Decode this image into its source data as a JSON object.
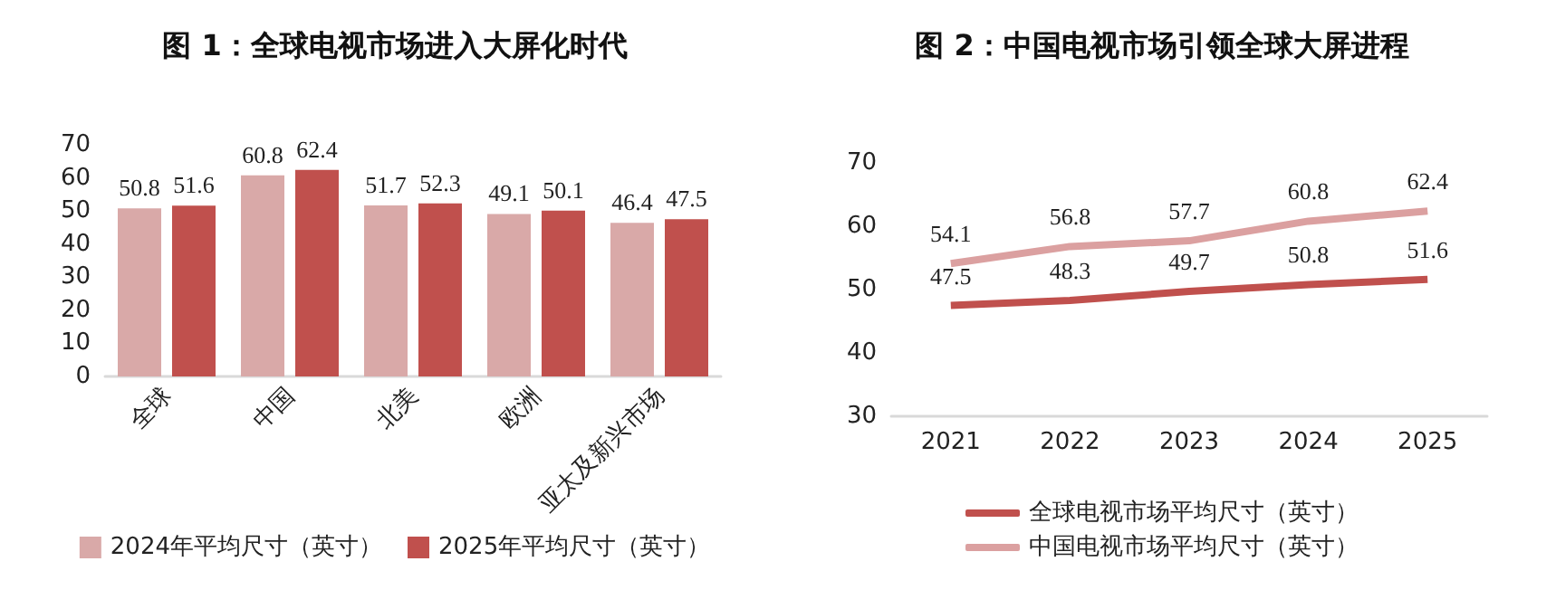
{
  "chart_data": [
    {
      "type": "bar",
      "title": "图 1：全球电视市场进入大屏化时代",
      "categories": [
        "全球",
        "中国",
        "北美",
        "欧洲",
        "亚太及新兴市场"
      ],
      "series": [
        {
          "name": "2024年平均尺寸（英寸）",
          "color": "#d9a9a8",
          "values": [
            50.8,
            60.8,
            51.7,
            49.1,
            46.4
          ]
        },
        {
          "name": "2025年平均尺寸（英寸）",
          "color": "#c0504d",
          "values": [
            51.6,
            62.4,
            52.3,
            50.1,
            47.5
          ]
        }
      ],
      "ylim": [
        0,
        70
      ],
      "yticks": [
        0,
        10,
        20,
        30,
        40,
        50,
        60,
        70
      ],
      "grid": false,
      "legend": "bottom",
      "data_labels": true
    },
    {
      "type": "line",
      "title": "图 2：中国电视市场引领全球大屏进程",
      "categories": [
        "2021",
        "2022",
        "2023",
        "2024",
        "2025"
      ],
      "series": [
        {
          "name": "全球电视市场平均尺寸（英寸）",
          "color": "#c0504d",
          "values": [
            47.5,
            48.3,
            49.7,
            50.8,
            51.6
          ]
        },
        {
          "name": "中国电视市场平均尺寸（英寸）",
          "color": "#dba0a0",
          "values": [
            54.1,
            56.8,
            57.7,
            60.8,
            62.4
          ]
        }
      ],
      "ylim": [
        30,
        70
      ],
      "yticks": [
        30,
        40,
        50,
        60,
        70
      ],
      "grid": false,
      "legend": "bottom",
      "marker": "none",
      "data_labels": true
    }
  ]
}
